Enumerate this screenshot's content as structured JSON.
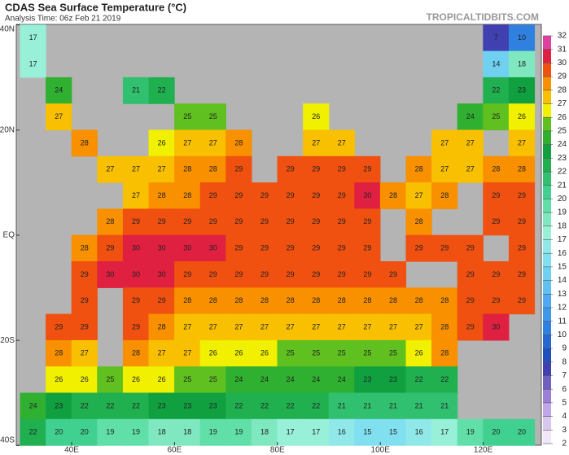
{
  "header": {
    "title": "CDAS Sea Surface Temperature (°C)",
    "subtitle": "Analysis Time: 06z Feb 21 2019",
    "watermark": "TROPICALTIDBITS.COM"
  },
  "map": {
    "lat_ticks": [
      {
        "value": 40,
        "label": "40N"
      },
      {
        "value": 20,
        "label": "20N"
      },
      {
        "value": 0,
        "label": "EQ"
      },
      {
        "value": -20,
        "label": "20S"
      },
      {
        "value": -40,
        "label": "40S"
      }
    ],
    "lon_ticks": [
      {
        "value": 40,
        "label": "40E"
      },
      {
        "value": 60,
        "label": "60E"
      },
      {
        "value": 80,
        "label": "80E"
      },
      {
        "value": 100,
        "label": "100E"
      },
      {
        "value": 120,
        "label": "120E"
      }
    ],
    "lons": [
      32.5,
      37.5,
      42.5,
      47.5,
      52.5,
      57.5,
      62.5,
      67.5,
      72.5,
      77.5,
      82.5,
      87.5,
      92.5,
      97.5,
      102.5,
      107.5,
      112.5,
      117.5,
      122.5,
      127.5
    ],
    "lats": [
      37.5,
      32.5,
      27.5,
      22.5,
      17.5,
      12.5,
      7.5,
      2.5,
      -2.5,
      -7.5,
      -12.5,
      -17.5,
      -22.5,
      -27.5,
      -32.5,
      -37.5
    ],
    "values": [
      [
        17,
        null,
        null,
        null,
        null,
        null,
        null,
        null,
        null,
        null,
        null,
        null,
        null,
        null,
        null,
        null,
        null,
        null,
        7,
        10
      ],
      [
        17,
        null,
        null,
        null,
        null,
        null,
        null,
        null,
        null,
        null,
        null,
        null,
        null,
        null,
        null,
        null,
        null,
        null,
        14,
        18
      ],
      [
        null,
        24,
        null,
        null,
        21,
        22,
        null,
        null,
        null,
        null,
        null,
        null,
        null,
        null,
        null,
        null,
        null,
        null,
        22,
        23
      ],
      [
        null,
        27,
        null,
        null,
        null,
        null,
        25,
        25,
        null,
        null,
        null,
        26,
        null,
        null,
        null,
        null,
        null,
        24,
        25,
        26
      ],
      [
        null,
        null,
        28,
        null,
        null,
        26,
        27,
        27,
        28,
        null,
        null,
        27,
        27,
        null,
        null,
        null,
        27,
        27,
        null,
        27
      ],
      [
        null,
        null,
        null,
        27,
        27,
        27,
        28,
        28,
        29,
        null,
        29,
        29,
        29,
        29,
        null,
        28,
        27,
        27,
        28,
        28
      ],
      [
        null,
        null,
        null,
        null,
        27,
        28,
        28,
        29,
        29,
        29,
        29,
        29,
        29,
        30,
        28,
        27,
        28,
        null,
        29,
        29
      ],
      [
        null,
        null,
        null,
        28,
        29,
        29,
        29,
        29,
        29,
        29,
        29,
        29,
        29,
        29,
        null,
        28,
        null,
        null,
        29,
        29
      ],
      [
        null,
        null,
        28,
        29,
        30,
        30,
        30,
        30,
        29,
        29,
        29,
        29,
        29,
        29,
        null,
        29,
        29,
        29,
        null,
        29
      ],
      [
        null,
        null,
        29,
        30,
        30,
        30,
        29,
        29,
        29,
        29,
        29,
        29,
        29,
        29,
        29,
        null,
        null,
        29,
        29,
        29
      ],
      [
        null,
        null,
        29,
        null,
        29,
        29,
        28,
        28,
        28,
        28,
        28,
        28,
        28,
        28,
        28,
        28,
        28,
        29,
        29,
        29
      ],
      [
        null,
        29,
        29,
        null,
        29,
        28,
        27,
        27,
        27,
        27,
        27,
        27,
        27,
        27,
        27,
        27,
        28,
        29,
        30,
        null
      ],
      [
        null,
        28,
        27,
        null,
        28,
        27,
        27,
        26,
        26,
        26,
        25,
        25,
        25,
        25,
        25,
        26,
        28,
        null,
        null,
        null
      ],
      [
        null,
        26,
        26,
        25,
        26,
        26,
        25,
        25,
        24,
        24,
        24,
        24,
        24,
        23,
        23,
        22,
        22,
        null,
        null,
        null
      ],
      [
        24,
        23,
        22,
        22,
        22,
        23,
        23,
        23,
        22,
        22,
        22,
        22,
        21,
        21,
        21,
        21,
        21,
        null,
        null,
        null
      ],
      [
        22,
        20,
        20,
        19,
        19,
        18,
        18,
        19,
        19,
        18,
        17,
        17,
        16,
        15,
        15,
        16,
        17,
        19,
        20,
        20
      ]
    ]
  },
  "colorbar": {
    "ticks": [
      2,
      3,
      4,
      5,
      6,
      7,
      8,
      9,
      10,
      11,
      12,
      13,
      14,
      15,
      16,
      17,
      18,
      19,
      20,
      21,
      22,
      23,
      24,
      25,
      26,
      27,
      28,
      29,
      30,
      31,
      32
    ],
    "colors": [
      "#f0e8f8",
      "#d8c8f0",
      "#c0a8e8",
      "#9c80d8",
      "#7060c0",
      "#4040b0",
      "#2050c0",
      "#2868d0",
      "#3080e0",
      "#4098e8",
      "#50a8f0",
      "#60c0f0",
      "#70d0f0",
      "#80e0f0",
      "#90e8e8",
      "#98f0d8",
      "#80e8c0",
      "#60e0a8",
      "#40d090",
      "#30c070",
      "#20b050",
      "#10a040",
      "#30b030",
      "#60c020",
      "#f0f000",
      "#f8c000",
      "#f89000",
      "#f05010",
      "#e02040",
      "#e040a0"
    ]
  }
}
